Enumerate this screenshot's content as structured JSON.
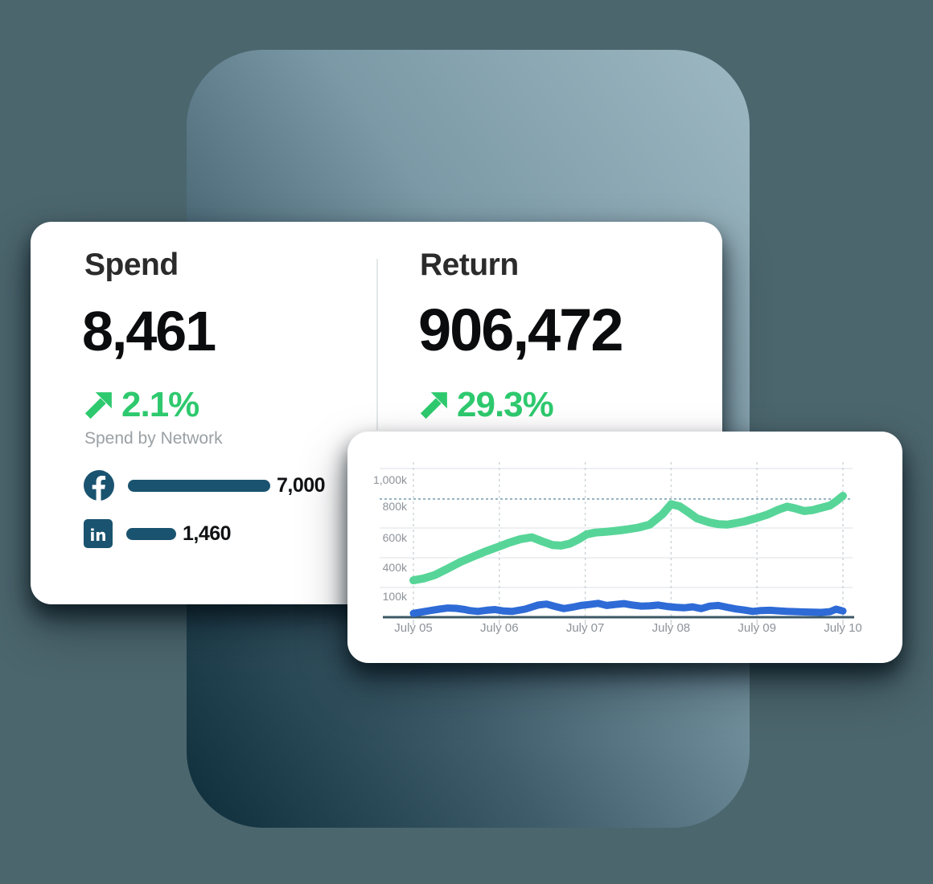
{
  "colors": {
    "page_background": "#4C666E",
    "panel_gradient_light": "#9DB8C2",
    "panel_gradient_dark": "#0D2D3B",
    "accent_green": "#2EC96E",
    "network_teal": "#1A536F",
    "chart_green": "#57D598",
    "chart_blue": "#2E6BD6",
    "axis_dark": "#3D5966",
    "grid_gray": "#CCD3D7",
    "grid_faint": "#E8EBED",
    "reference_dash": "#7FA3B2",
    "tick_label_gray": "#8D939A"
  },
  "metrics_card": {
    "spend": {
      "title": "Spend",
      "value": "8,461",
      "delta": "2.1%",
      "trend": "up"
    },
    "return": {
      "title": "Return",
      "value": "906,472",
      "delta": "29.3%",
      "trend": "up"
    },
    "network_section_label": "Spend by Network",
    "networks": [
      {
        "name": "Facebook",
        "icon": "facebook-icon",
        "value": "7,000"
      },
      {
        "name": "LinkedIn",
        "icon": "linkedin-icon",
        "value": "1,460"
      }
    ]
  },
  "chart_data": {
    "type": "line",
    "title": "",
    "x_ticks": [
      "July 05",
      "July 06",
      "July 07",
      "July 08",
      "July 09",
      "July 10"
    ],
    "y_ticks": [
      "1,000k",
      "800k",
      "600k",
      "400k",
      "100k"
    ],
    "ylim_k": [
      0,
      1075
    ],
    "grid": "vertical-dashed with faint horizontal lines",
    "legend": "none",
    "reference_line": {
      "value_k": 855,
      "style": "dashed"
    },
    "series": [
      {
        "name": "Return",
        "color": "#57D598",
        "points_day_valueK": [
          [
            0,
            267
          ],
          [
            0.12,
            280
          ],
          [
            0.25,
            305
          ],
          [
            0.4,
            352
          ],
          [
            0.55,
            400
          ],
          [
            0.7,
            440
          ],
          [
            0.85,
            478
          ],
          [
            1.0,
            512
          ],
          [
            1.12,
            540
          ],
          [
            1.25,
            565
          ],
          [
            1.38,
            578
          ],
          [
            1.5,
            548
          ],
          [
            1.62,
            522
          ],
          [
            1.72,
            518
          ],
          [
            1.82,
            532
          ],
          [
            1.92,
            562
          ],
          [
            2.02,
            600
          ],
          [
            2.12,
            612
          ],
          [
            2.25,
            618
          ],
          [
            2.4,
            628
          ],
          [
            2.5,
            636
          ],
          [
            2.62,
            648
          ],
          [
            2.75,
            670
          ],
          [
            2.9,
            745
          ],
          [
            3.0,
            818
          ],
          [
            3.1,
            802
          ],
          [
            3.2,
            760
          ],
          [
            3.3,
            715
          ],
          [
            3.45,
            685
          ],
          [
            3.55,
            673
          ],
          [
            3.65,
            670
          ],
          [
            3.75,
            680
          ],
          [
            3.85,
            692
          ],
          [
            4.0,
            718
          ],
          [
            4.12,
            742
          ],
          [
            4.25,
            778
          ],
          [
            4.35,
            800
          ],
          [
            4.45,
            786
          ],
          [
            4.55,
            768
          ],
          [
            4.65,
            775
          ],
          [
            4.75,
            792
          ],
          [
            4.85,
            808
          ],
          [
            4.92,
            838
          ],
          [
            5.0,
            878
          ]
        ]
      },
      {
        "name": "Spend",
        "color": "#2E6BD6",
        "points_day_valueK": [
          [
            0,
            28
          ],
          [
            0.1,
            38
          ],
          [
            0.2,
            48
          ],
          [
            0.3,
            58
          ],
          [
            0.4,
            66
          ],
          [
            0.5,
            64
          ],
          [
            0.6,
            55
          ],
          [
            0.65,
            48
          ],
          [
            0.75,
            42
          ],
          [
            0.85,
            50
          ],
          [
            0.95,
            55
          ],
          [
            1.05,
            45
          ],
          [
            1.15,
            42
          ],
          [
            1.3,
            58
          ],
          [
            1.45,
            88
          ],
          [
            1.55,
            95
          ],
          [
            1.65,
            78
          ],
          [
            1.75,
            62
          ],
          [
            1.85,
            72
          ],
          [
            1.95,
            85
          ],
          [
            2.05,
            92
          ],
          [
            2.15,
            100
          ],
          [
            2.25,
            85
          ],
          [
            2.35,
            92
          ],
          [
            2.45,
            98
          ],
          [
            2.55,
            88
          ],
          [
            2.65,
            80
          ],
          [
            2.75,
            82
          ],
          [
            2.85,
            88
          ],
          [
            2.95,
            78
          ],
          [
            3.05,
            72
          ],
          [
            3.15,
            68
          ],
          [
            3.25,
            75
          ],
          [
            3.35,
            62
          ],
          [
            3.45,
            80
          ],
          [
            3.55,
            85
          ],
          [
            3.65,
            72
          ],
          [
            3.75,
            60
          ],
          [
            3.85,
            52
          ],
          [
            3.95,
            42
          ],
          [
            4.05,
            48
          ],
          [
            4.15,
            50
          ],
          [
            4.25,
            46
          ],
          [
            4.35,
            42
          ],
          [
            4.45,
            40
          ],
          [
            4.55,
            38
          ],
          [
            4.65,
            36
          ],
          [
            4.75,
            35
          ],
          [
            4.85,
            40
          ],
          [
            4.92,
            58
          ],
          [
            5.0,
            45
          ]
        ]
      }
    ]
  }
}
